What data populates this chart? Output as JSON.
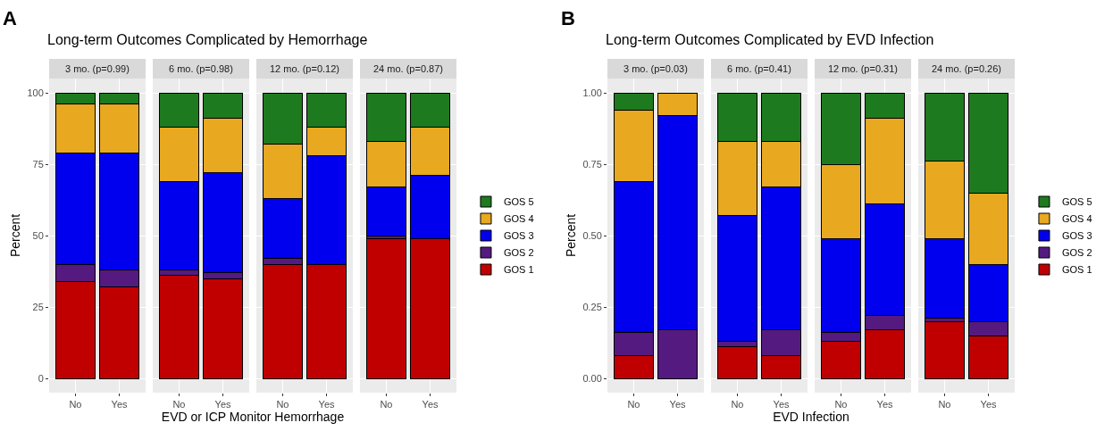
{
  "chart_data": [
    {
      "type": "bar",
      "title": "Long-term Outcomes Complicated by Hemorrhage",
      "annotations": [
        "A"
      ],
      "subtitle": "3 mo. (p=0.99)",
      "ylabel": "Percent",
      "xlabel": "EVD or ICP Monitor Hemorrhage",
      "categories": [
        "No",
        "Yes"
      ],
      "stacked": true,
      "ylim": [
        -5,
        105
      ],
      "yticks": [
        0,
        25,
        50,
        75,
        100
      ],
      "grid": true,
      "legend": false,
      "series": [
        {
          "color": "#c00000",
          "values": [
            34,
            32
          ]
        },
        {
          "color": "#551a80",
          "values": [
            6,
            6
          ]
        },
        {
          "color": "#0000ee",
          "values": [
            39,
            41
          ]
        },
        {
          "color": "#e8a820",
          "values": [
            17,
            17
          ]
        },
        {
          "color": "#1e7a1e",
          "values": [
            4,
            4
          ]
        }
      ]
    },
    {
      "type": "bar",
      "subtitle": "6 mo. (p=0.98)",
      "categories": [
        "No",
        "Yes"
      ],
      "stacked": true,
      "ylim": [
        -5,
        105
      ],
      "yticks": [
        0,
        25,
        50,
        75,
        100
      ],
      "grid": true,
      "legend": false,
      "tick_labels": "x",
      "series": [
        {
          "color": "#c00000",
          "values": [
            36,
            35
          ]
        },
        {
          "color": "#551a80",
          "values": [
            2,
            2
          ]
        },
        {
          "color": "#0000ee",
          "values": [
            31,
            35
          ]
        },
        {
          "color": "#e8a820",
          "values": [
            19,
            19
          ]
        },
        {
          "color": "#1e7a1e",
          "values": [
            12,
            9
          ]
        }
      ]
    },
    {
      "type": "bar",
      "subtitle": "12 mo. (p=0.12)",
      "categories": [
        "No",
        "Yes"
      ],
      "stacked": true,
      "ylim": [
        -5,
        105
      ],
      "yticks": [
        0,
        25,
        50,
        75,
        100
      ],
      "grid": true,
      "legend": false,
      "tick_labels": "x",
      "series": [
        {
          "color": "#c00000",
          "values": [
            40,
            40
          ]
        },
        {
          "color": "#551a80",
          "values": [
            2,
            0
          ]
        },
        {
          "color": "#0000ee",
          "values": [
            21,
            38
          ]
        },
        {
          "color": "#e8a820",
          "values": [
            19,
            10
          ]
        },
        {
          "color": "#1e7a1e",
          "values": [
            18,
            12
          ]
        }
      ]
    },
    {
      "type": "bar",
      "subtitle": "24 mo. (p=0.87)",
      "categories": [
        "No",
        "Yes"
      ],
      "stacked": true,
      "ylim": [
        -5,
        105
      ],
      "yticks": [
        0,
        25,
        50,
        75,
        100
      ],
      "grid": true,
      "legend": "right",
      "tick_labels": "x",
      "series": [
        {
          "name": "GOS 1",
          "color": "#c00000",
          "values": [
            49,
            49
          ]
        },
        {
          "name": "GOS 2",
          "color": "#551a80",
          "values": [
            1,
            0
          ]
        },
        {
          "name": "GOS 3",
          "color": "#0000ee",
          "values": [
            17,
            22
          ]
        },
        {
          "name": "GOS 4",
          "color": "#e8a820",
          "values": [
            16,
            17
          ]
        },
        {
          "name": "GOS 5",
          "color": "#1e7a1e",
          "values": [
            17,
            12
          ]
        }
      ]
    },
    {
      "type": "bar",
      "title": "Long-term Outcomes Complicated by EVD Infection",
      "annotations": [
        "B"
      ],
      "subtitle": "3 mo. (p=0.03)",
      "ylabel": "Percent",
      "xlabel": "EVD Infection",
      "categories": [
        "No",
        "Yes"
      ],
      "stacked": true,
      "ylim": [
        -0.05,
        1.05
      ],
      "yticks": [
        {
          "value": 0,
          "label": "0.00"
        },
        0.25,
        {
          "value": 0.5,
          "label": "0.50"
        },
        0.75,
        {
          "value": 1,
          "label": "1.00"
        }
      ],
      "grid": true,
      "legend": false,
      "series": [
        {
          "color": "#c00000",
          "values": [
            0.08,
            0
          ]
        },
        {
          "color": "#551a80",
          "values": [
            0.08,
            0.17
          ]
        },
        {
          "color": "#0000ee",
          "values": [
            0.53,
            0.75
          ]
        },
        {
          "color": "#e8a820",
          "values": [
            0.25,
            0.08
          ]
        },
        {
          "color": "#1e7a1e",
          "values": [
            0.06,
            0
          ]
        }
      ]
    },
    {
      "type": "bar",
      "subtitle": "6 mo. (p=0.41)",
      "categories": [
        "No",
        "Yes"
      ],
      "stacked": true,
      "ylim": [
        -0.05,
        1.05
      ],
      "yticks": [
        0,
        0.25,
        0.5,
        0.75,
        1
      ],
      "grid": true,
      "legend": false,
      "tick_labels": "x",
      "series": [
        {
          "color": "#c00000",
          "values": [
            0.11,
            0.08
          ]
        },
        {
          "color": "#551a80",
          "values": [
            0.02,
            0.09
          ]
        },
        {
          "color": "#0000ee",
          "values": [
            0.44,
            0.5
          ]
        },
        {
          "color": "#e8a820",
          "values": [
            0.26,
            0.16
          ]
        },
        {
          "color": "#1e7a1e",
          "values": [
            0.17,
            0.17
          ]
        }
      ]
    },
    {
      "type": "bar",
      "subtitle": "12 mo. (p=0.31)",
      "categories": [
        "No",
        "Yes"
      ],
      "stacked": true,
      "ylim": [
        -0.05,
        1.05
      ],
      "yticks": [
        0,
        0.25,
        0.5,
        0.75,
        1
      ],
      "grid": true,
      "legend": false,
      "tick_labels": "x",
      "series": [
        {
          "color": "#c00000",
          "values": [
            0.13,
            0.17
          ]
        },
        {
          "color": "#551a80",
          "values": [
            0.03,
            0.05
          ]
        },
        {
          "color": "#0000ee",
          "values": [
            0.33,
            0.39
          ]
        },
        {
          "color": "#e8a820",
          "values": [
            0.26,
            0.3
          ]
        },
        {
          "color": "#1e7a1e",
          "values": [
            0.25,
            0.09
          ]
        }
      ]
    },
    {
      "type": "bar",
      "subtitle": "24 mo. (p=0.26)",
      "categories": [
        "No",
        "Yes"
      ],
      "stacked": true,
      "ylim": [
        -0.05,
        1.05
      ],
      "yticks": [
        0,
        0.25,
        0.5,
        0.75,
        1
      ],
      "grid": true,
      "legend": "right",
      "tick_labels": "x",
      "series": [
        {
          "name": "GOS 1",
          "color": "#c00000",
          "values": [
            0.2,
            0.15
          ]
        },
        {
          "name": "GOS 2",
          "color": "#551a80",
          "values": [
            0.01,
            0.05
          ]
        },
        {
          "name": "GOS 3",
          "color": "#0000ee",
          "values": [
            0.28,
            0.2
          ]
        },
        {
          "name": "GOS 4",
          "color": "#e8a820",
          "values": [
            0.27,
            0.25
          ]
        },
        {
          "name": "GOS 5",
          "color": "#1e7a1e",
          "values": [
            0.24,
            0.35
          ]
        }
      ]
    }
  ]
}
